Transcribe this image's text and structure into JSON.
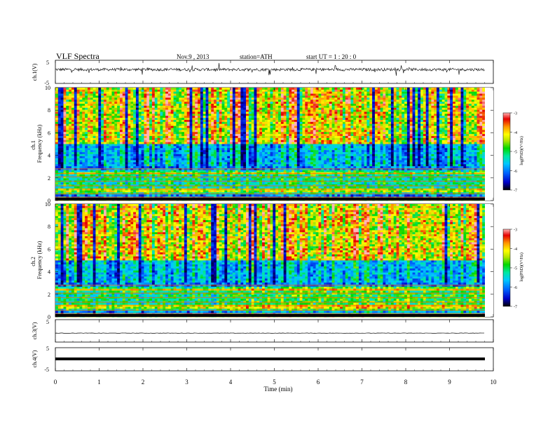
{
  "header": {
    "title": "VLF  Spectra",
    "date": "Nov.9  , 2013",
    "station": "station=ATH",
    "start": "start  UT =   1  : 20 : 0"
  },
  "chart_data": [
    {
      "type": "line",
      "name": "ch.1 waveform",
      "ylabel": "ch.1(V)",
      "ylim": [
        -5,
        5
      ],
      "yticks": [
        "5",
        "-5"
      ],
      "xlim": [
        0,
        10
      ],
      "series": [
        {
          "description": "noisy waveform around +1 V",
          "baseline": 1
        }
      ]
    },
    {
      "type": "heatmap",
      "ylabel_channel": "ch.1",
      "ylabel": "Frequency  (kHz)",
      "ylim": [
        0,
        10
      ],
      "yticks": [
        "0",
        "2",
        "4",
        "6",
        "8",
        "10"
      ],
      "xlim": [
        0,
        9.8
      ],
      "colorbar": {
        "label": "log(PSD)(V²/Hz)",
        "range": [
          -7,
          -3
        ],
        "ticks": [
          "-3",
          "-4",
          "-5",
          "-6",
          "-7"
        ],
        "colors": [
          "#000000",
          "#0000c8",
          "#0064ff",
          "#00c8ff",
          "#00e8a0",
          "#00d800",
          "#b4e600",
          "#ffff00",
          "#ff9600",
          "#e60000",
          "#ffb4b4"
        ]
      },
      "description": "broadband spikes up to 10 kHz with persistent horizontal lines below 3 kHz"
    },
    {
      "type": "heatmap",
      "ylabel_channel": "ch.2",
      "ylabel": "Frequency  (kHz)",
      "ylim": [
        0,
        10
      ],
      "yticks": [
        "0",
        "2",
        "4",
        "6",
        "8",
        "10"
      ],
      "xlim": [
        0,
        9.8
      ],
      "colorbar": {
        "label": "log(PSD)(V²/Hz)",
        "range": [
          -7,
          -3
        ],
        "ticks": [
          "-3",
          "-4",
          "-5",
          "-6",
          "-7"
        ]
      }
    },
    {
      "type": "line",
      "name": "ch.3 waveform",
      "ylabel": "ch.3(V)",
      "ylim": [
        -5,
        5
      ],
      "yticks": [
        "5"
      ],
      "series": [
        {
          "description": "flat line near -1 V",
          "baseline": -1
        }
      ]
    },
    {
      "type": "line",
      "name": "ch.4 waveform",
      "ylabel": "ch.4(V)",
      "ylim": [
        -5,
        5
      ],
      "yticks": [
        "5",
        "-5"
      ],
      "series": [
        {
          "description": "thick flat line near 0 V",
          "baseline": 0
        }
      ]
    }
  ],
  "xaxis": {
    "label": "Time  (min)",
    "ticks": [
      "0",
      "1",
      "2",
      "3",
      "4",
      "5",
      "6",
      "7",
      "8",
      "9",
      "10"
    ],
    "range": [
      0,
      10
    ]
  }
}
